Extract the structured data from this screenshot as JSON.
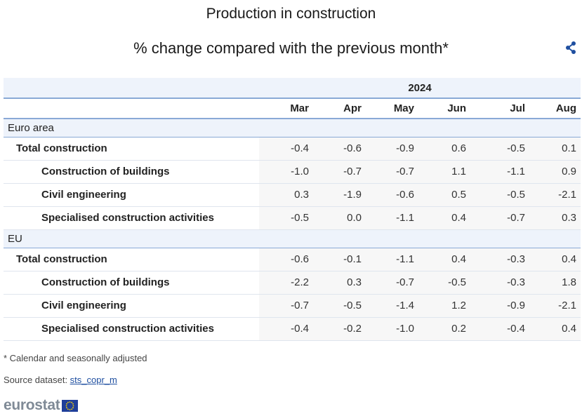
{
  "chart_data": {
    "type": "table",
    "title": "Production in construction",
    "subtitle": "% change compared with the previous month*",
    "year": "2024",
    "columns": [
      "Mar",
      "Apr",
      "May",
      "Jun",
      "Jul",
      "Aug"
    ],
    "groups": [
      {
        "name": "Euro area",
        "rows": [
          {
            "label": "Total construction",
            "level": 1,
            "values": [
              "-0.4",
              "-0.6",
              "-0.9",
              "0.6",
              "-0.5",
              "0.1"
            ]
          },
          {
            "label": "Construction of buildings",
            "level": 2,
            "values": [
              "-1.0",
              "-0.7",
              "-0.7",
              "1.1",
              "-1.1",
              "0.9"
            ]
          },
          {
            "label": "Civil engineering",
            "level": 2,
            "values": [
              "0.3",
              "-1.9",
              "-0.6",
              "0.5",
              "-0.5",
              "-2.1"
            ]
          },
          {
            "label": "Specialised construction activities",
            "level": 2,
            "values": [
              "-0.5",
              "0.0",
              "-1.1",
              "0.4",
              "-0.7",
              "0.3"
            ]
          }
        ]
      },
      {
        "name": "EU",
        "rows": [
          {
            "label": "Total construction",
            "level": 1,
            "values": [
              "-0.6",
              "-0.1",
              "-1.1",
              "0.4",
              "-0.3",
              "0.4"
            ]
          },
          {
            "label": "Construction of buildings",
            "level": 2,
            "values": [
              "-2.2",
              "0.3",
              "-0.7",
              "-0.5",
              "-0.3",
              "1.8"
            ]
          },
          {
            "label": "Civil engineering",
            "level": 2,
            "values": [
              "-0.7",
              "-0.5",
              "-1.4",
              "1.2",
              "-0.9",
              "-2.1"
            ]
          },
          {
            "label": "Specialised construction activities",
            "level": 2,
            "values": [
              "-0.4",
              "-0.2",
              "-1.0",
              "0.2",
              "-0.4",
              "0.4"
            ]
          }
        ]
      }
    ]
  },
  "footer": {
    "note": "*  Calendar and seasonally adjusted",
    "source_label": "Source dataset: ",
    "source_link": "sts_copr_m",
    "logo_text": "eurostat"
  },
  "icons": {
    "share": "share-icon",
    "flag": "eu-flag-icon"
  },
  "colors": {
    "header_bg": "#eef3fb",
    "rule": "#8aa9d6",
    "value_bg": "#f7f7f7",
    "link": "#1f4fa0",
    "logo_grey": "#7f8a96",
    "flag_blue": "#1f3f9a",
    "flag_star": "#ffd700"
  }
}
